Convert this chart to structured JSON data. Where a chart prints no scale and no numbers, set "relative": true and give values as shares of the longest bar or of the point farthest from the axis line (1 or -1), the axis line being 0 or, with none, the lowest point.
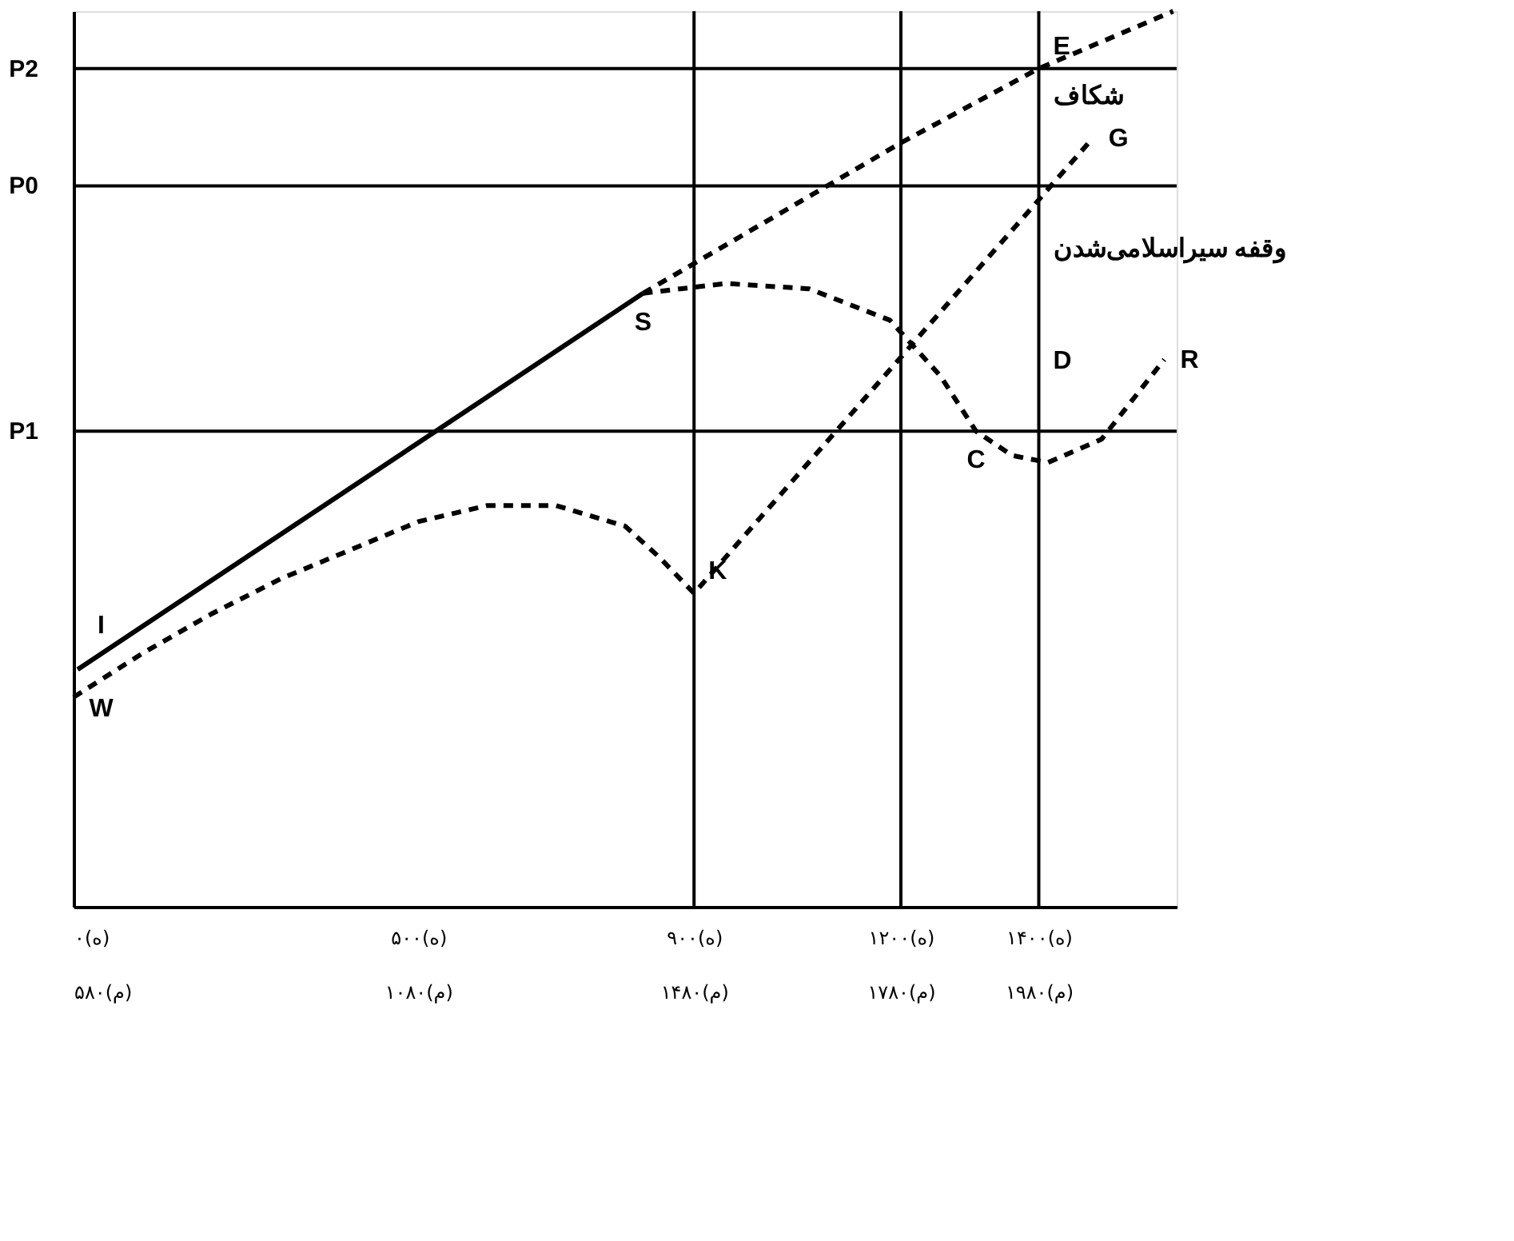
{
  "chart_data": {
    "type": "line",
    "relative": true,
    "xlim": [
      0,
      1600
    ],
    "xticks": [
      {
        "value": 0,
        "label": "۰(ه)"
      },
      {
        "value": 500,
        "label": "۵۰۰(ه)"
      },
      {
        "value": 900,
        "label": "۹۰۰(ه)"
      },
      {
        "value": 1200,
        "label": "۱۲۰۰(ه)"
      },
      {
        "value": 1400,
        "label": "۱۴۰۰(ه)"
      }
    ],
    "x2lim": [
      580,
      2180
    ],
    "x2ticks": [
      {
        "value": 580,
        "label": "۵۸۰(م)"
      },
      {
        "value": 1080,
        "label": "۱۰۸۰(م)"
      },
      {
        "value": 1480,
        "label": "۱۴۸۰(م)"
      },
      {
        "value": 1780,
        "label": "۱۷۸۰(م)"
      },
      {
        "value": 1980,
        "label": "۱۹۸۰(م)"
      }
    ],
    "series": [
      {
        "color": "#000000",
        "line_style": "solid",
        "x": [
          6,
          826
        ],
        "values": [
          0.265,
          0.685
        ]
      },
      {
        "color": "#000000",
        "line_style": "dashed",
        "x": [
          0,
          100,
          200,
          300,
          400,
          500,
          600,
          700,
          800,
          850,
          900,
          1478
        ],
        "values": [
          0.234,
          0.283,
          0.327,
          0.366,
          0.398,
          0.43,
          0.448,
          0.448,
          0.425,
          0.39,
          0.35,
          0.858
        ]
      },
      {
        "color": "#000000",
        "line_style": "dashed",
        "x": [
          826,
          1200,
          1400,
          1595
        ],
        "values": [
          0.685,
          0.853,
          0.936,
          1.0
        ]
      },
      {
        "color": "#000000",
        "line_style": "dashed",
        "x": [
          826,
          946,
          1067,
          1184,
          1257,
          1309,
          1361,
          1413,
          1491,
          1582
        ],
        "values": [
          0.685,
          0.696,
          0.69,
          0.655,
          0.593,
          0.531,
          0.504,
          0.496,
          0.522,
          0.611
        ]
      }
    ],
    "ref_lines": [
      {
        "axis": "y",
        "value": 0.936,
        "label": "P2"
      },
      {
        "axis": "y",
        "value": 0.805,
        "label": "P0"
      },
      {
        "axis": "y",
        "value": 0.531,
        "label": "P1"
      },
      {
        "axis": "x",
        "value": 900,
        "label": null
      },
      {
        "axis": "x",
        "value": 1200,
        "label": null
      },
      {
        "axis": "x",
        "value": 1400,
        "label": null
      }
    ],
    "annotations": [
      {
        "text": "I",
        "x": 40,
        "y": 0.282
      },
      {
        "text": "W",
        "x": 40,
        "y": 0.254
      },
      {
        "text": "S",
        "x": 826,
        "y": 0.685
      },
      {
        "text": "K",
        "x": 900,
        "y": 0.35
      },
      {
        "text": "E",
        "x": 1400,
        "y": 0.936
      },
      {
        "text": "شکاف",
        "x": 1400,
        "y": 0.905
      },
      {
        "text": "G",
        "x": 1478,
        "y": 0.858
      },
      {
        "text": "وقفه سیراسلامی‌شدن",
        "x": 1400,
        "y": 0.735
      },
      {
        "text": "D",
        "x": 1400,
        "y": 0.61
      },
      {
        "text": "R",
        "x": 1582,
        "y": 0.611
      },
      {
        "text": "C",
        "x": 1309,
        "y": 0.531
      }
    ],
    "grid": false
  }
}
